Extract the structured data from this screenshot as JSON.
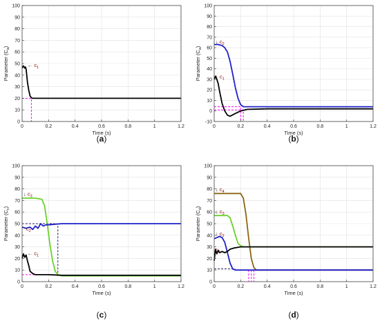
{
  "chart_data": [
    {
      "panel": "a",
      "caption_open": "(",
      "caption_letter": "a",
      "caption_close": ")",
      "type": "line",
      "xlabel": "Time (s)",
      "ylabel": "Parameter (C",
      "ylabel_sub": "a",
      "ylabel_close": ")",
      "xlim": [
        0,
        1.2
      ],
      "ylim": [
        0,
        100
      ],
      "xticks": [
        "0",
        "0.2",
        "0.4",
        "0.6",
        "0.8",
        "1",
        "1.2"
      ],
      "yticks": [
        "0",
        "10",
        "20",
        "30",
        "40",
        "50",
        "60",
        "70",
        "80",
        "90",
        "100"
      ],
      "grid": true,
      "series": [
        {
          "label": "c",
          "label_sub": "1",
          "label_at": [
            0.03,
            47
          ],
          "arrow": "left",
          "color": "#000000",
          "x": [
            0,
            0.01,
            0.02,
            0.025,
            0.03,
            0.035,
            0.04,
            0.05,
            0.06,
            0.07,
            0.08,
            0.1,
            0.15,
            0.3,
            0.6,
            0.9,
            1.2
          ],
          "y": [
            46,
            48,
            46,
            47,
            45,
            40,
            34,
            27,
            22,
            20.5,
            20,
            20,
            20,
            20,
            20,
            20,
            20
          ]
        }
      ],
      "guides": [
        {
          "color": "#ff00ff",
          "x": [
            0,
            0.07,
            0.07
          ],
          "y": [
            20,
            20,
            0
          ]
        }
      ]
    },
    {
      "panel": "b",
      "caption_open": "(",
      "caption_letter": "b",
      "caption_close": ")",
      "type": "line",
      "xlabel": "Time (s)",
      "ylabel": "Parameter (C",
      "ylabel_sub": "a",
      "ylabel_close": ")",
      "xlim": [
        0,
        1.2
      ],
      "ylim": [
        -10,
        100
      ],
      "xticks": [
        "0",
        "0.2",
        "0.4",
        "0.6",
        "0.8",
        "1",
        "1.2"
      ],
      "yticks": [
        "-10",
        "0",
        "10",
        "20",
        "30",
        "40",
        "50",
        "60",
        "70",
        "80",
        "90",
        "100"
      ],
      "grid": true,
      "series": [
        {
          "label": "c",
          "label_sub": "2",
          "label_at": [
            0.0,
            64
          ],
          "arrow": "down",
          "color": "#1f1fc8",
          "x": [
            0,
            0.03,
            0.06,
            0.08,
            0.1,
            0.12,
            0.14,
            0.16,
            0.18,
            0.2,
            0.22,
            0.25,
            0.4,
            0.8,
            1.2
          ],
          "y": [
            63,
            63,
            62,
            60,
            56,
            47,
            35,
            22,
            12,
            6,
            4,
            4,
            4,
            4,
            4
          ]
        },
        {
          "label": "c",
          "label_sub": "1",
          "label_at": [
            0.0,
            31
          ],
          "arrow": "down",
          "color": "#000000",
          "x": [
            0,
            0.01,
            0.02,
            0.03,
            0.04,
            0.06,
            0.08,
            0.1,
            0.12,
            0.15,
            0.2,
            0.25,
            0.4,
            0.8,
            1.2
          ],
          "y": [
            30,
            33,
            30,
            26,
            19,
            7,
            0,
            -4,
            -5,
            -3,
            0,
            1.5,
            2,
            2,
            2
          ]
        }
      ],
      "guides": [
        {
          "color": "#ff00ff",
          "x": [
            0,
            0.2,
            0.2
          ],
          "y": [
            4,
            4,
            -10
          ]
        },
        {
          "color": "#ff00ff",
          "x": [
            0,
            0.22,
            0.22
          ],
          "y": [
            1,
            1,
            -10
          ]
        }
      ]
    },
    {
      "panel": "c",
      "caption_open": "(",
      "caption_letter": "c",
      "caption_close": ")",
      "type": "line",
      "xlabel": "Time (s)",
      "ylabel": "Parameter (C",
      "ylabel_sub": "c",
      "ylabel_close": ")",
      "xlim": [
        0,
        1.2
      ],
      "ylim": [
        0,
        100
      ],
      "xticks": [
        "0",
        "0.2",
        "0.4",
        "0.6",
        "0.8",
        "1",
        "1.2"
      ],
      "yticks": [
        "0",
        "10",
        "20",
        "30",
        "40",
        "50",
        "60",
        "70",
        "80",
        "90",
        "100"
      ],
      "grid": true,
      "series": [
        {
          "label": "c",
          "label_sub": "3",
          "label_at": [
            0.0,
            74
          ],
          "arrow": "down",
          "color": "#6ad12a",
          "x": [
            0,
            0.05,
            0.1,
            0.15,
            0.17,
            0.19,
            0.21,
            0.23,
            0.25,
            0.27,
            0.3,
            0.4,
            0.8,
            1.2
          ],
          "y": [
            72,
            72,
            72,
            71,
            65,
            50,
            32,
            18,
            9,
            6,
            5,
            5,
            5,
            5
          ]
        },
        {
          "label": "c",
          "label_sub": "2",
          "label_at": [
            0.02,
            44
          ],
          "arrow": "none",
          "color": "#1f1fc8",
          "x": [
            0,
            0.03,
            0.06,
            0.08,
            0.1,
            0.12,
            0.14,
            0.16,
            0.18,
            0.2,
            0.25,
            0.3,
            0.5,
            0.8,
            1.2
          ],
          "y": [
            47,
            46,
            47,
            45,
            48,
            46,
            50,
            48,
            49,
            49,
            49.5,
            50,
            50,
            50,
            50
          ]
        },
        {
          "label": "c",
          "label_sub": "1",
          "label_at": [
            0.03,
            23
          ],
          "arrow": "left",
          "color": "#000000",
          "x": [
            0,
            0.01,
            0.02,
            0.03,
            0.04,
            0.05,
            0.06,
            0.08,
            0.1,
            0.15,
            0.2,
            0.3,
            0.6,
            1.2
          ],
          "y": [
            20,
            24,
            21,
            23,
            18,
            14,
            9,
            7,
            6,
            6,
            6,
            5.5,
            5.5,
            5.5
          ]
        }
      ],
      "guides": [
        {
          "color": "#ff00ff",
          "x": [
            0,
            0.27
          ],
          "y": [
            6,
            6
          ]
        },
        {
          "color": "#202060",
          "x": [
            0,
            0.27,
            0.27
          ],
          "y": [
            50,
            50,
            5
          ]
        }
      ]
    },
    {
      "panel": "d",
      "caption_open": "(",
      "caption_letter": "d",
      "caption_close": ")",
      "type": "line",
      "xlabel": "Time (s)",
      "ylabel": "Parameter (C",
      "ylabel_sub": "d",
      "ylabel_close": ")",
      "xlim": [
        0,
        1.2
      ],
      "ylim": [
        0,
        100
      ],
      "xticks": [
        "0",
        "0.2",
        "0.4",
        "0.6",
        "0.8",
        "1",
        "1.2"
      ],
      "yticks": [
        "0",
        "10",
        "20",
        "30",
        "40",
        "50",
        "60",
        "70",
        "80",
        "90",
        "100"
      ],
      "grid": true,
      "series": [
        {
          "label": "c",
          "label_sub": "4",
          "label_at": [
            0.0,
            78
          ],
          "arrow": "down",
          "color": "#8a6512",
          "x": [
            0,
            0.1,
            0.2,
            0.22,
            0.24,
            0.26,
            0.28,
            0.3,
            0.32,
            0.35,
            0.5,
            0.8,
            1.2
          ],
          "y": [
            76,
            76,
            76,
            72,
            58,
            38,
            20,
            12,
            10,
            10,
            10,
            10,
            10
          ]
        },
        {
          "label": "c",
          "label_sub": "3",
          "label_at": [
            0.0,
            59
          ],
          "arrow": "down",
          "color": "#6ad12a",
          "x": [
            0,
            0.05,
            0.1,
            0.12,
            0.14,
            0.16,
            0.18,
            0.2,
            0.22,
            0.25,
            0.3,
            0.5,
            0.8,
            1.2
          ],
          "y": [
            57,
            57,
            57,
            55,
            48,
            40,
            33,
            31,
            30,
            30,
            30,
            30,
            30,
            30
          ]
        },
        {
          "label": "c",
          "label_sub": "2",
          "label_at": [
            0.0,
            40
          ],
          "arrow": "down",
          "color": "#1f1fc8",
          "x": [
            0,
            0.02,
            0.04,
            0.06,
            0.08,
            0.1,
            0.12,
            0.14,
            0.16,
            0.2,
            0.3,
            0.5,
            1.2
          ],
          "y": [
            37,
            38,
            39,
            38,
            34,
            25,
            16,
            11,
            10,
            10,
            10,
            10,
            10
          ]
        },
        {
          "label": "c",
          "label_sub": "1",
          "label_at": [
            0.0,
            26
          ],
          "arrow": "none",
          "color": "#000000",
          "x": [
            0,
            0.01,
            0.02,
            0.03,
            0.04,
            0.06,
            0.08,
            0.1,
            0.12,
            0.15,
            0.2,
            0.25,
            0.3,
            0.5,
            1.2
          ],
          "y": [
            18,
            28,
            24,
            27,
            25,
            26,
            25,
            26,
            28,
            29,
            30,
            30,
            30,
            30,
            30
          ]
        }
      ],
      "guides": [
        {
          "color": "#ff00ff",
          "x": [
            0.26,
            0.26
          ],
          "y": [
            10,
            0
          ]
        },
        {
          "color": "#ff00ff",
          "x": [
            0.28,
            0.28
          ],
          "y": [
            10,
            0
          ]
        },
        {
          "color": "#ff00ff",
          "x": [
            0.3,
            0.3
          ],
          "y": [
            10,
            0
          ]
        },
        {
          "color": "#202060",
          "x": [
            0,
            0.16
          ],
          "y": [
            11,
            11
          ]
        }
      ]
    }
  ]
}
